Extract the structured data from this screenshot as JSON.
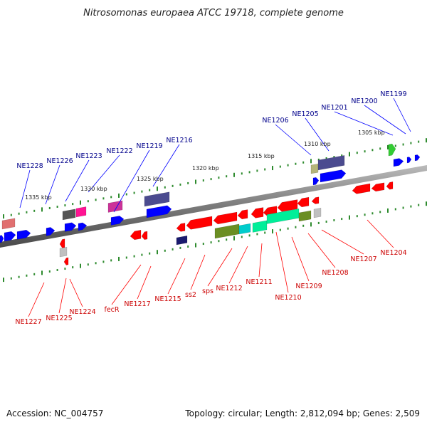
{
  "title": "Nitrosomonas europaea ATCC 19718, complete genome",
  "footer": {
    "accession": "Accession: NC_004757",
    "summary": "Topology: circular; Length: 2,812,094 bp; Genes: 2,509"
  },
  "colors": {
    "plus_strand_label": "#00008b",
    "minus_strand_label": "#cc0000",
    "backbone": "#808080",
    "tick": "#2e8b2e"
  },
  "scale_labels": [
    "1305 kbp",
    "1310 kbp",
    "1315 kbp",
    "1320 kbp",
    "1325 kbp",
    "1330 kbp",
    "1335 kbp"
  ],
  "plus_labels": [
    "NE1199",
    "NE1200",
    "NE1201",
    "NE1205",
    "NE1206",
    "NE1216",
    "NE1219",
    "NE1222",
    "NE1223",
    "NE1226",
    "NE1228"
  ],
  "minus_labels": [
    "NE1204",
    "NE1207",
    "NE1208",
    "NE1209",
    "NE1210",
    "NE1211",
    "NE1212",
    "sps",
    "ss2",
    "NE1215",
    "NE1217",
    "fecR",
    "NE1224",
    "NE1225",
    "NE1227"
  ]
}
